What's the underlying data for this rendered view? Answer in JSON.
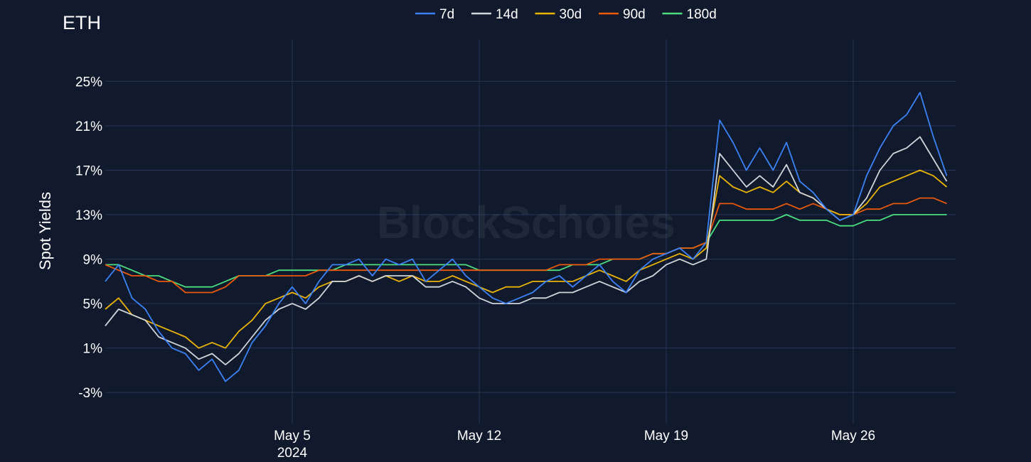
{
  "chart_data": {
    "type": "line",
    "title": "ETH",
    "ylabel": "Spot Yields",
    "xlabel": "",
    "watermark": "BlockScholes",
    "ylim": [
      -5.8,
      28.8
    ],
    "xlim": [
      "2024-04-28",
      "2024-05-29T20:00"
    ],
    "grid": true,
    "legend_position": "top",
    "y_ticks": [
      {
        "value": 25,
        "label": "25%"
      },
      {
        "value": 21,
        "label": "21%"
      },
      {
        "value": 17,
        "label": "17%"
      },
      {
        "value": 13,
        "label": "13%"
      },
      {
        "value": 9,
        "label": "9%"
      },
      {
        "value": 5,
        "label": "5%"
      },
      {
        "value": 1,
        "label": "1%"
      },
      {
        "value": -3,
        "label": "-3%"
      }
    ],
    "x_ticks": [
      {
        "date": "2024-05-05",
        "label": "May 5",
        "sublabel": "2024"
      },
      {
        "date": "2024-05-12",
        "label": "May 12",
        "sublabel": ""
      },
      {
        "date": "2024-05-19",
        "label": "May 19",
        "sublabel": ""
      },
      {
        "date": "2024-05-26",
        "label": "May 26",
        "sublabel": ""
      }
    ],
    "x": [
      "2024-04-28T00:00",
      "2024-04-28T12:00",
      "2024-04-29T00:00",
      "2024-04-29T12:00",
      "2024-04-30T00:00",
      "2024-04-30T12:00",
      "2024-05-01T00:00",
      "2024-05-01T12:00",
      "2024-05-02T00:00",
      "2024-05-02T12:00",
      "2024-05-03T00:00",
      "2024-05-03T12:00",
      "2024-05-04T00:00",
      "2024-05-04T12:00",
      "2024-05-05T00:00",
      "2024-05-05T12:00",
      "2024-05-06T00:00",
      "2024-05-06T12:00",
      "2024-05-07T00:00",
      "2024-05-07T12:00",
      "2024-05-08T00:00",
      "2024-05-08T12:00",
      "2024-05-09T00:00",
      "2024-05-09T12:00",
      "2024-05-10T00:00",
      "2024-05-10T12:00",
      "2024-05-11T00:00",
      "2024-05-11T12:00",
      "2024-05-12T00:00",
      "2024-05-12T12:00",
      "2024-05-13T00:00",
      "2024-05-13T12:00",
      "2024-05-14T00:00",
      "2024-05-14T12:00",
      "2024-05-15T00:00",
      "2024-05-15T12:00",
      "2024-05-16T00:00",
      "2024-05-16T12:00",
      "2024-05-17T00:00",
      "2024-05-17T12:00",
      "2024-05-18T00:00",
      "2024-05-18T12:00",
      "2024-05-19T00:00",
      "2024-05-19T12:00",
      "2024-05-20T00:00",
      "2024-05-20T12:00",
      "2024-05-21T00:00",
      "2024-05-21T12:00",
      "2024-05-22T00:00",
      "2024-05-22T12:00",
      "2024-05-23T00:00",
      "2024-05-23T12:00",
      "2024-05-24T00:00",
      "2024-05-24T12:00",
      "2024-05-25T00:00",
      "2024-05-25T12:00",
      "2024-05-26T00:00",
      "2024-05-26T12:00",
      "2024-05-27T00:00",
      "2024-05-27T12:00",
      "2024-05-28T00:00",
      "2024-05-28T12:00",
      "2024-05-29T00:00",
      "2024-05-29T12:00"
    ],
    "series": [
      {
        "name": "7d",
        "color": "#3b82f6",
        "values": [
          7.0,
          8.5,
          5.5,
          4.5,
          2.5,
          1.0,
          0.5,
          -1.0,
          0.0,
          -2.0,
          -1.0,
          1.5,
          3.0,
          5.0,
          6.5,
          5.0,
          7.0,
          8.5,
          8.5,
          9.0,
          7.5,
          9.0,
          8.5,
          9.0,
          7.0,
          8.0,
          9.0,
          7.5,
          6.5,
          5.5,
          5.0,
          5.5,
          6.0,
          7.0,
          7.5,
          6.5,
          7.5,
          8.5,
          7.0,
          6.0,
          8.0,
          9.0,
          9.5,
          10.0,
          9.0,
          10.5,
          21.5,
          19.5,
          17.0,
          19.0,
          17.0,
          19.5,
          16.0,
          15.0,
          13.5,
          12.5,
          13.0,
          16.5,
          19.0,
          21.0,
          22.0,
          24.0,
          20.0,
          16.5
        ]
      },
      {
        "name": "14d",
        "color": "#d1d5db",
        "values": [
          3.0,
          4.5,
          4.0,
          3.5,
          2.0,
          1.5,
          1.0,
          0.0,
          0.5,
          -0.5,
          0.5,
          2.0,
          3.5,
          4.5,
          5.0,
          4.5,
          5.5,
          7.0,
          7.0,
          7.5,
          7.0,
          7.5,
          7.5,
          7.5,
          6.5,
          6.5,
          7.0,
          6.5,
          5.5,
          5.0,
          5.0,
          5.0,
          5.5,
          5.5,
          6.0,
          6.0,
          6.5,
          7.0,
          6.5,
          6.0,
          7.0,
          7.5,
          8.5,
          9.0,
          8.5,
          9.0,
          18.5,
          17.0,
          15.5,
          16.5,
          15.5,
          17.5,
          15.0,
          14.5,
          13.5,
          12.5,
          13.0,
          14.5,
          17.0,
          18.5,
          19.0,
          20.0,
          18.0,
          16.0
        ]
      },
      {
        "name": "30d",
        "color": "#eab308",
        "values": [
          4.5,
          5.5,
          4.0,
          3.5,
          3.0,
          2.5,
          2.0,
          1.0,
          1.5,
          1.0,
          2.5,
          3.5,
          5.0,
          5.5,
          6.0,
          5.5,
          6.5,
          7.0,
          7.0,
          7.5,
          7.0,
          7.5,
          7.0,
          7.5,
          7.0,
          7.0,
          7.5,
          7.0,
          6.5,
          6.0,
          6.5,
          6.5,
          7.0,
          7.0,
          7.0,
          7.0,
          7.5,
          8.0,
          7.5,
          7.0,
          8.0,
          8.5,
          9.0,
          9.5,
          9.0,
          10.0,
          16.5,
          15.5,
          15.0,
          15.5,
          15.0,
          16.0,
          15.0,
          14.5,
          13.5,
          13.0,
          13.0,
          14.0,
          15.5,
          16.0,
          16.5,
          17.0,
          16.5,
          15.5
        ]
      },
      {
        "name": "90d",
        "color": "#ea580c",
        "values": [
          8.5,
          8.0,
          7.5,
          7.5,
          7.0,
          7.0,
          6.0,
          6.0,
          6.0,
          6.5,
          7.5,
          7.5,
          7.5,
          7.5,
          7.5,
          7.5,
          8.0,
          8.0,
          8.0,
          8.0,
          8.0,
          8.0,
          8.0,
          8.0,
          8.0,
          8.0,
          8.0,
          8.0,
          8.0,
          8.0,
          8.0,
          8.0,
          8.0,
          8.0,
          8.5,
          8.5,
          8.5,
          9.0,
          9.0,
          9.0,
          9.0,
          9.5,
          9.5,
          10.0,
          10.0,
          10.5,
          14.0,
          14.0,
          13.5,
          13.5,
          13.5,
          14.0,
          13.5,
          14.0,
          13.5,
          13.0,
          13.0,
          13.5,
          13.5,
          14.0,
          14.0,
          14.5,
          14.5,
          14.0
        ]
      },
      {
        "name": "180d",
        "color": "#4ade80",
        "values": [
          8.5,
          8.5,
          8.0,
          7.5,
          7.5,
          7.0,
          6.5,
          6.5,
          6.5,
          7.0,
          7.5,
          7.5,
          7.5,
          8.0,
          8.0,
          8.0,
          8.0,
          8.0,
          8.5,
          8.5,
          8.5,
          8.5,
          8.5,
          8.5,
          8.5,
          8.5,
          8.5,
          8.5,
          8.0,
          8.0,
          8.0,
          8.0,
          8.0,
          8.0,
          8.0,
          8.5,
          8.5,
          8.5,
          9.0,
          9.0,
          9.0,
          9.5,
          9.5,
          10.0,
          10.0,
          10.5,
          12.5,
          12.5,
          12.5,
          12.5,
          12.5,
          13.0,
          12.5,
          12.5,
          12.5,
          12.0,
          12.0,
          12.5,
          12.5,
          13.0,
          13.0,
          13.0,
          13.0,
          13.0
        ]
      }
    ]
  }
}
